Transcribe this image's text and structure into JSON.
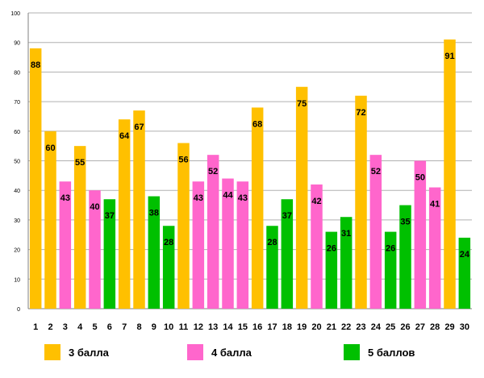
{
  "chart_data": {
    "type": "bar",
    "title": "",
    "xlabel": "",
    "ylabel": "",
    "ylim": [
      0,
      100
    ],
    "yticks": [
      0,
      10,
      20,
      30,
      40,
      50,
      60,
      70,
      80,
      90,
      100
    ],
    "grid": true,
    "categories": [
      "1",
      "2",
      "3",
      "4",
      "5",
      "6",
      "7",
      "8",
      "9",
      "10",
      "11",
      "12",
      "13",
      "14",
      "15",
      "16",
      "17",
      "18",
      "19",
      "20",
      "21",
      "22",
      "23",
      "24",
      "25",
      "26",
      "27",
      "28",
      "29",
      "30"
    ],
    "values": [
      88,
      60,
      43,
      55,
      40,
      37,
      64,
      67,
      38,
      28,
      56,
      43,
      52,
      44,
      43,
      68,
      28,
      37,
      75,
      42,
      26,
      31,
      72,
      52,
      26,
      35,
      50,
      41,
      91,
      24
    ],
    "value_groups": [
      "3",
      "3",
      "4",
      "3",
      "4",
      "5",
      "3",
      "3",
      "5",
      "5",
      "3",
      "4",
      "4",
      "4",
      "4",
      "3",
      "5",
      "5",
      "3",
      "4",
      "5",
      "5",
      "3",
      "4",
      "5",
      "5",
      "4",
      "4",
      "3",
      "5"
    ],
    "legend": [
      {
        "key": "3",
        "label": "3 балла",
        "color": "#ffc000"
      },
      {
        "key": "4",
        "label": "4 балла",
        "color": "#ff66cc"
      },
      {
        "key": "5",
        "label": "5 баллов",
        "color": "#00c000"
      }
    ],
    "legend_position": "bottom"
  }
}
